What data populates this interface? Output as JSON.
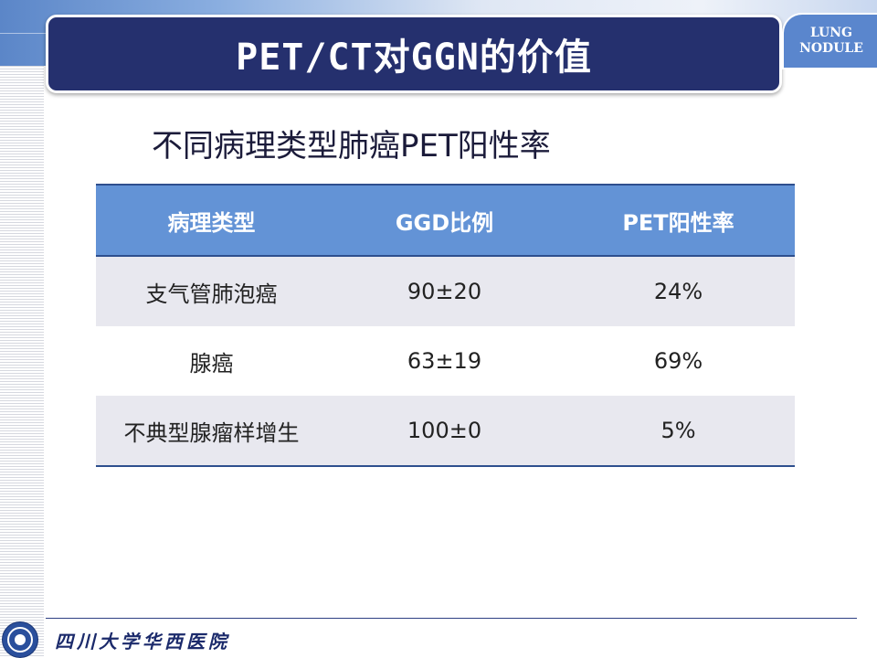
{
  "slide": {
    "title": "PET/CT对GGN的价值",
    "tag_line1": "LUNG",
    "tag_line2": "NODULE",
    "subtitle": "不同病理类型肺癌PET阳性率"
  },
  "table": {
    "headers": [
      "病理类型",
      "GGD比例",
      "PET阳性率"
    ],
    "rows": [
      [
        "支气管肺泡癌",
        "90±20",
        "24%"
      ],
      [
        "腺癌",
        "63±19",
        "69%"
      ],
      [
        "不典型腺瘤样增生",
        "100±0",
        "5%"
      ]
    ]
  },
  "footer": {
    "institution": "四川大学华西医院",
    "logo_icon": "hospital-seal-icon"
  },
  "colors": {
    "title_banner": "#25306e",
    "table_header": "#6393d6",
    "row_shade": "#e8e8ef",
    "accent_blue": "#5a86cd"
  }
}
